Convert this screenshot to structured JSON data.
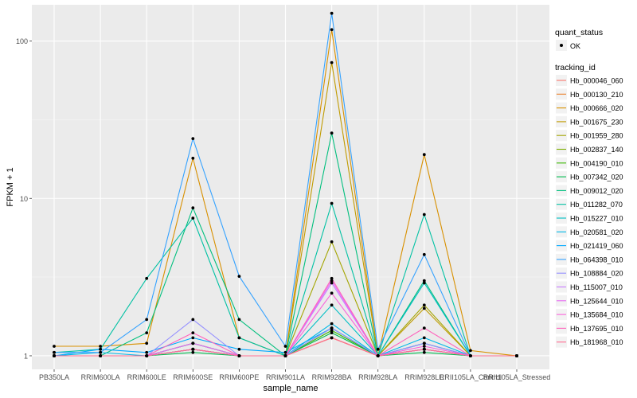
{
  "chart_data": {
    "type": "line",
    "title": "",
    "xlabel": "sample_name",
    "ylabel": "FPKM + 1",
    "yscale": "log10",
    "ylim": [
      0.82,
      170
    ],
    "y_ticks": [
      {
        "value": 1,
        "label": "1"
      },
      {
        "value": 10,
        "label": "10"
      },
      {
        "value": 100,
        "label": "100"
      }
    ],
    "categories": [
      "PB350LA",
      "RRIM600LA",
      "RRIM600LE",
      "RRIM600SE",
      "RRIM600PE",
      "RRIM901LA",
      "RRIM928BA",
      "RRIM928LA",
      "RRIM928LE",
      "RRII105LA_Control",
      "RRII105LA_Stressed"
    ],
    "grid": true,
    "legend": {
      "position": "right",
      "quant_title": "quant_status",
      "quant_label": "OK",
      "series_title": "tracking_id"
    },
    "series": [
      {
        "name": "Hb_000046_060",
        "color": "#F8766D",
        "values": [
          1.0,
          1.0,
          1.0,
          1.1,
          1.0,
          1.0,
          1.3,
          1.0,
          1.1,
          1.0,
          1.0
        ]
      },
      {
        "name": "Hb_000130_210",
        "color": "#EA8331",
        "values": [
          1.0,
          1.0,
          1.0,
          1.2,
          1.0,
          1.0,
          1.3,
          1.0,
          1.1,
          1.0,
          1.0
        ]
      },
      {
        "name": "Hb_000666_020",
        "color": "#D89000",
        "values": [
          1.15,
          1.15,
          1.2,
          18.0,
          1.3,
          1.0,
          118.0,
          1.0,
          19.0,
          1.08,
          1.0
        ]
      },
      {
        "name": "Hb_001675_230",
        "color": "#C09B00",
        "values": [
          1.0,
          1.0,
          1.0,
          1.2,
          1.0,
          1.0,
          73.0,
          1.0,
          2.0,
          1.0,
          1.0
        ]
      },
      {
        "name": "Hb_001959_280",
        "color": "#A3A500",
        "values": [
          1.0,
          1.0,
          1.0,
          1.1,
          1.0,
          1.0,
          5.3,
          1.0,
          2.1,
          1.0,
          1.0
        ]
      },
      {
        "name": "Hb_002837_140",
        "color": "#7CAE00",
        "values": [
          1.0,
          1.0,
          1.0,
          1.1,
          1.0,
          1.0,
          1.5,
          1.0,
          1.2,
          1.0,
          1.0
        ]
      },
      {
        "name": "Hb_004190_010",
        "color": "#39B600",
        "values": [
          1.0,
          1.0,
          1.0,
          1.1,
          1.0,
          1.0,
          1.45,
          1.0,
          1.1,
          1.0,
          1.0
        ]
      },
      {
        "name": "Hb_007342_020",
        "color": "#00BB4E",
        "values": [
          1.0,
          1.0,
          1.0,
          1.05,
          1.0,
          1.0,
          1.4,
          1.0,
          1.05,
          1.0,
          1.0
        ]
      },
      {
        "name": "Hb_009012_020",
        "color": "#00BF7D",
        "values": [
          1.0,
          1.0,
          1.4,
          8.7,
          1.7,
          1.0,
          26.0,
          1.0,
          3.0,
          1.0,
          1.0
        ]
      },
      {
        "name": "Hb_011282_070",
        "color": "#00C1A3",
        "values": [
          1.05,
          1.1,
          3.1,
          7.5,
          1.3,
          1.0,
          9.3,
          1.0,
          7.9,
          1.0,
          1.0
        ]
      },
      {
        "name": "Hb_015227_010",
        "color": "#00BFC4",
        "values": [
          1.0,
          1.0,
          1.0,
          1.1,
          1.0,
          1.0,
          2.1,
          1.0,
          2.9,
          1.0,
          1.0
        ]
      },
      {
        "name": "Hb_020581_020",
        "color": "#00B8E7",
        "values": [
          1.0,
          1.05,
          1.0,
          1.2,
          1.0,
          1.0,
          1.6,
          1.0,
          1.3,
          1.0,
          1.0
        ]
      },
      {
        "name": "Hb_021419_060",
        "color": "#00A9FF",
        "values": [
          1.0,
          1.1,
          1.05,
          1.3,
          1.1,
          1.05,
          1.5,
          1.0,
          1.2,
          1.0,
          1.0
        ]
      },
      {
        "name": "Hb_064398_010",
        "color": "#35A2FF",
        "values": [
          1.05,
          1.05,
          1.7,
          24.0,
          3.2,
          1.15,
          150.0,
          1.1,
          4.4,
          1.0,
          1.0
        ]
      },
      {
        "name": "Hb_108884_020",
        "color": "#9590FF",
        "values": [
          1.0,
          1.0,
          1.0,
          1.7,
          1.0,
          1.0,
          1.5,
          1.0,
          1.2,
          1.0,
          1.0
        ]
      },
      {
        "name": "Hb_115007_010",
        "color": "#C77CFF",
        "values": [
          1.0,
          1.0,
          1.0,
          1.1,
          1.0,
          1.0,
          2.9,
          1.0,
          1.1,
          1.0,
          1.0
        ]
      },
      {
        "name": "Hb_125644_010",
        "color": "#E76BF3",
        "values": [
          1.0,
          1.0,
          1.0,
          1.2,
          1.0,
          1.0,
          3.0,
          1.0,
          1.1,
          1.0,
          1.0
        ]
      },
      {
        "name": "Hb_135684_010",
        "color": "#FA62DB",
        "values": [
          1.0,
          1.0,
          1.0,
          1.1,
          1.0,
          1.0,
          2.5,
          1.0,
          1.15,
          1.0,
          1.0
        ]
      },
      {
        "name": "Hb_137695_010",
        "color": "#FF62BC",
        "values": [
          1.0,
          1.0,
          1.0,
          1.4,
          1.0,
          1.0,
          3.1,
          1.0,
          1.5,
          1.0,
          1.0
        ]
      },
      {
        "name": "Hb_181968_010",
        "color": "#FF6C91",
        "values": [
          1.0,
          1.0,
          1.0,
          1.1,
          1.0,
          1.0,
          1.3,
          1.0,
          1.1,
          1.0,
          1.0
        ]
      }
    ]
  }
}
